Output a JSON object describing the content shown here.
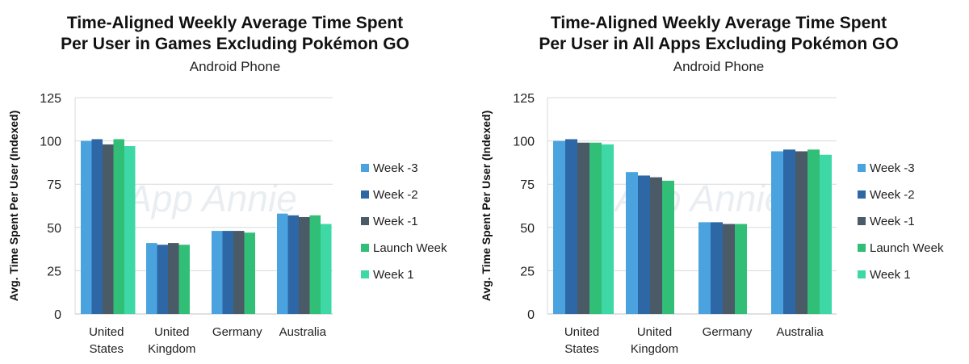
{
  "chart_data": [
    {
      "type": "bar",
      "title_line1": "Time-Aligned Weekly Average Time Spent",
      "title_line2": "Per User in Games Excluding Pokémon GO",
      "subtitle": "Android Phone",
      "ylabel": "Avg. Time Spent Per User (Indexed)",
      "xlabel": "",
      "ylim": [
        0,
        125
      ],
      "yticks": [
        "0",
        "25",
        "50",
        "75",
        "100",
        "125"
      ],
      "grid": true,
      "legend_position": "right",
      "watermark": "App Annie",
      "categories": [
        [
          "United",
          "States"
        ],
        [
          "United",
          "Kingdom"
        ],
        [
          "Germany"
        ],
        [
          "Australia"
        ]
      ],
      "series": [
        {
          "name": "Week -3",
          "color": "#4aa3df",
          "values": [
            100,
            41,
            48,
            58
          ]
        },
        {
          "name": "Week -2",
          "color": "#2e67a6",
          "values": [
            101,
            40,
            48,
            57
          ]
        },
        {
          "name": "Week -1",
          "color": "#4a5a66",
          "values": [
            98,
            41,
            48,
            56
          ]
        },
        {
          "name": "Launch Week",
          "color": "#31be76",
          "values": [
            101,
            40,
            47,
            57
          ]
        },
        {
          "name": "Week 1",
          "color": "#3ed8a6",
          "values": [
            97,
            null,
            null,
            52
          ]
        }
      ]
    },
    {
      "type": "bar",
      "title_line1": "Time-Aligned Weekly Average Time Spent",
      "title_line2": "Per User in All Apps Excluding Pokémon GO",
      "subtitle": "Android Phone",
      "ylabel": "Avg. Time Spent Per User (Indexed)",
      "xlabel": "",
      "ylim": [
        0,
        125
      ],
      "yticks": [
        "0",
        "25",
        "50",
        "75",
        "100",
        "125"
      ],
      "grid": true,
      "legend_position": "right",
      "watermark": "App Annie",
      "categories": [
        [
          "United",
          "States"
        ],
        [
          "United",
          "Kingdom"
        ],
        [
          "Germany"
        ],
        [
          "Australia"
        ]
      ],
      "series": [
        {
          "name": "Week -3",
          "color": "#4aa3df",
          "values": [
            100,
            82,
            53,
            94
          ]
        },
        {
          "name": "Week -2",
          "color": "#2e67a6",
          "values": [
            101,
            80,
            53,
            95
          ]
        },
        {
          "name": "Week -1",
          "color": "#4a5a66",
          "values": [
            99,
            79,
            52,
            94
          ]
        },
        {
          "name": "Launch Week",
          "color": "#31be76",
          "values": [
            99,
            77,
            52,
            95
          ]
        },
        {
          "name": "Week 1",
          "color": "#3ed8a6",
          "values": [
            98,
            null,
            null,
            92
          ]
        }
      ]
    }
  ]
}
